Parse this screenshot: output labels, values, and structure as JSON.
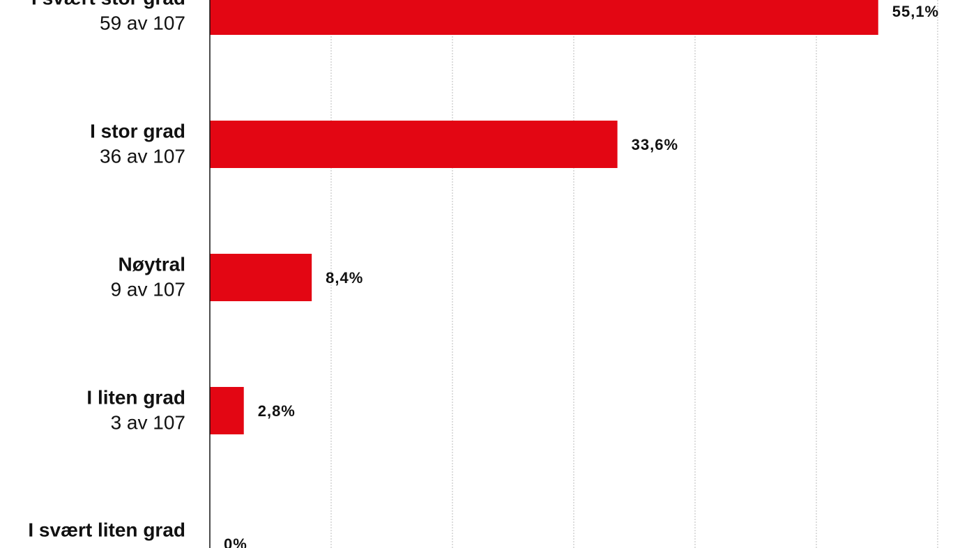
{
  "chart_data": {
    "type": "bar",
    "orientation": "horizontal",
    "categories": [
      "I svært stor grad",
      "I stor grad",
      "Nøytral",
      "I liten grad",
      "I svært liten grad"
    ],
    "sublabels": [
      "59 av 107",
      "36 av 107",
      "9 av 107",
      "3 av 107"
    ],
    "values": [
      55.1,
      33.6,
      8.4,
      2.8,
      0
    ],
    "value_labels": [
      "55,1%",
      "33,6%",
      "8,4%",
      "2,8%",
      "0%"
    ],
    "color": "#e30613",
    "xlim": [
      0,
      60
    ],
    "xticks": [
      0,
      10,
      20,
      30,
      40,
      50,
      60
    ],
    "grid": true
  }
}
